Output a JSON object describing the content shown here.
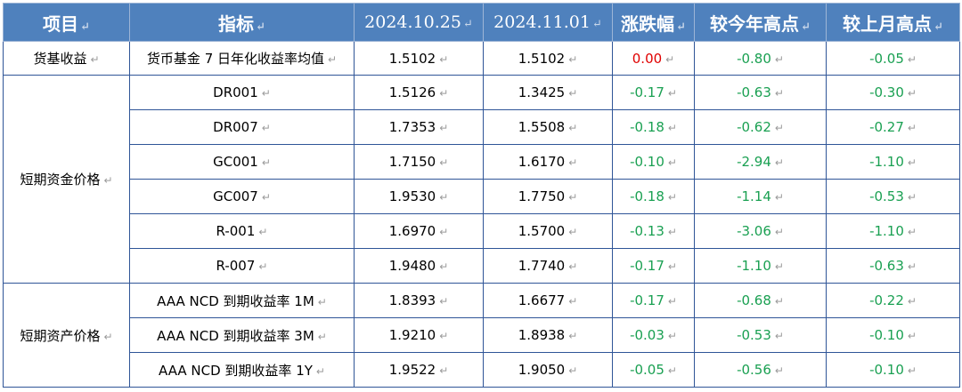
{
  "header": {
    "col_item": "项目",
    "col_indicator": "指标",
    "col_date1": "2024.10.25",
    "col_date2": "2024.11.01",
    "col_change": "涨跌幅",
    "col_vs_year_high": "较今年高点",
    "col_vs_month_high": "较上月高点"
  },
  "glyph": "↵",
  "groups": [
    {
      "label": "货基收益",
      "rows": [
        {
          "indicator": "货币基金 7 日年化收益率均值",
          "d1": "1.5102",
          "d2": "1.5102",
          "change": "0.00",
          "year": "-0.80",
          "month": "-0.05"
        }
      ]
    },
    {
      "label": "短期资金价格",
      "rows": [
        {
          "indicator": "DR001",
          "d1": "1.5126",
          "d2": "1.3425",
          "change": "-0.17",
          "year": "-0.63",
          "month": "-0.30"
        },
        {
          "indicator": "DR007",
          "d1": "1.7353",
          "d2": "1.5508",
          "change": "-0.18",
          "year": "-0.62",
          "month": "-0.27"
        },
        {
          "indicator": "GC001",
          "d1": "1.7150",
          "d2": "1.6170",
          "change": "-0.10",
          "year": "-2.94",
          "month": "-1.10"
        },
        {
          "indicator": "GC007",
          "d1": "1.9530",
          "d2": "1.7750",
          "change": "-0.18",
          "year": "-1.14",
          "month": "-0.53"
        },
        {
          "indicator": "R-001",
          "d1": "1.6970",
          "d2": "1.5700",
          "change": "-0.13",
          "year": "-3.06",
          "month": "-1.10"
        },
        {
          "indicator": "R-007",
          "d1": "1.9480",
          "d2": "1.7740",
          "change": "-0.17",
          "year": "-1.10",
          "month": "-0.63"
        }
      ]
    },
    {
      "label": "短期资产价格",
      "rows": [
        {
          "indicator": "AAA NCD 到期收益率 1M",
          "d1": "1.8393",
          "d2": "1.6677",
          "change": "-0.17",
          "year": "-0.68",
          "month": "-0.22"
        },
        {
          "indicator": "AAA NCD 到期收益率 3M",
          "d1": "1.9210",
          "d2": "1.8938",
          "change": "-0.03",
          "year": "-0.53",
          "month": "-0.10"
        },
        {
          "indicator": "AAA NCD 到期收益率 1Y",
          "d1": "1.9522",
          "d2": "1.9050",
          "change": "-0.05",
          "year": "-0.56",
          "month": "-0.10"
        }
      ]
    }
  ],
  "colors": {
    "header_bg": "#4f81bd",
    "up": "#e00000",
    "down": "#1aa052",
    "border": "#2f5597"
  }
}
